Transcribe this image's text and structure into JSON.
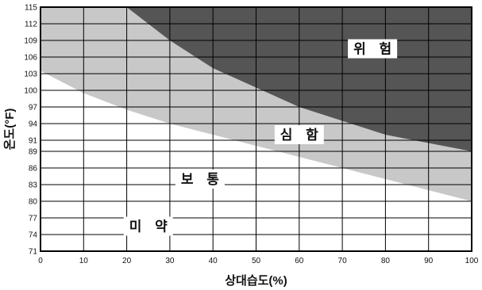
{
  "chart_data": {
    "type": "area",
    "title": "",
    "xlabel": "상대습도(%)",
    "ylabel": "온도(°F)",
    "xlim": [
      0,
      100
    ],
    "ylim": [
      71,
      115
    ],
    "x_ticks": [
      0,
      10,
      20,
      30,
      40,
      50,
      60,
      70,
      80,
      90,
      100
    ],
    "y_ticks": [
      71,
      74,
      77,
      80,
      83,
      86,
      89,
      91,
      94,
      97,
      100,
      103,
      106,
      109,
      112,
      115
    ],
    "grid": true,
    "zones": [
      {
        "name": "미 약",
        "fill": "#ffffff"
      },
      {
        "name": "보 통",
        "fill": "#ffffff"
      },
      {
        "name": "심 함",
        "fill": "#c8c8c8"
      },
      {
        "name": "위 험",
        "fill": "#555555"
      }
    ],
    "boundaries": [
      {
        "between": [
          "보 통",
          "심 함"
        ],
        "x": [
          0,
          10,
          20,
          30,
          40,
          50,
          60,
          70,
          80,
          90,
          100
        ],
        "y": [
          103.5,
          99.5,
          96.5,
          94,
          92,
          90,
          88,
          86,
          84,
          82,
          80
        ]
      },
      {
        "between": [
          "심 함",
          "위 험"
        ],
        "x": [
          20,
          30,
          40,
          50,
          60,
          70,
          80,
          90,
          100
        ],
        "y": [
          115,
          109,
          104,
          100.5,
          97,
          94.5,
          92,
          90.5,
          89
        ]
      }
    ],
    "labels": [
      {
        "text": "위 험",
        "x": 77,
        "y": 107.5
      },
      {
        "text": "심 함",
        "x": 60,
        "y": 92
      },
      {
        "text": "보 통",
        "x": 37,
        "y": 84
      },
      {
        "text": "미 약",
        "x": 25,
        "y": 75.5
      }
    ]
  }
}
